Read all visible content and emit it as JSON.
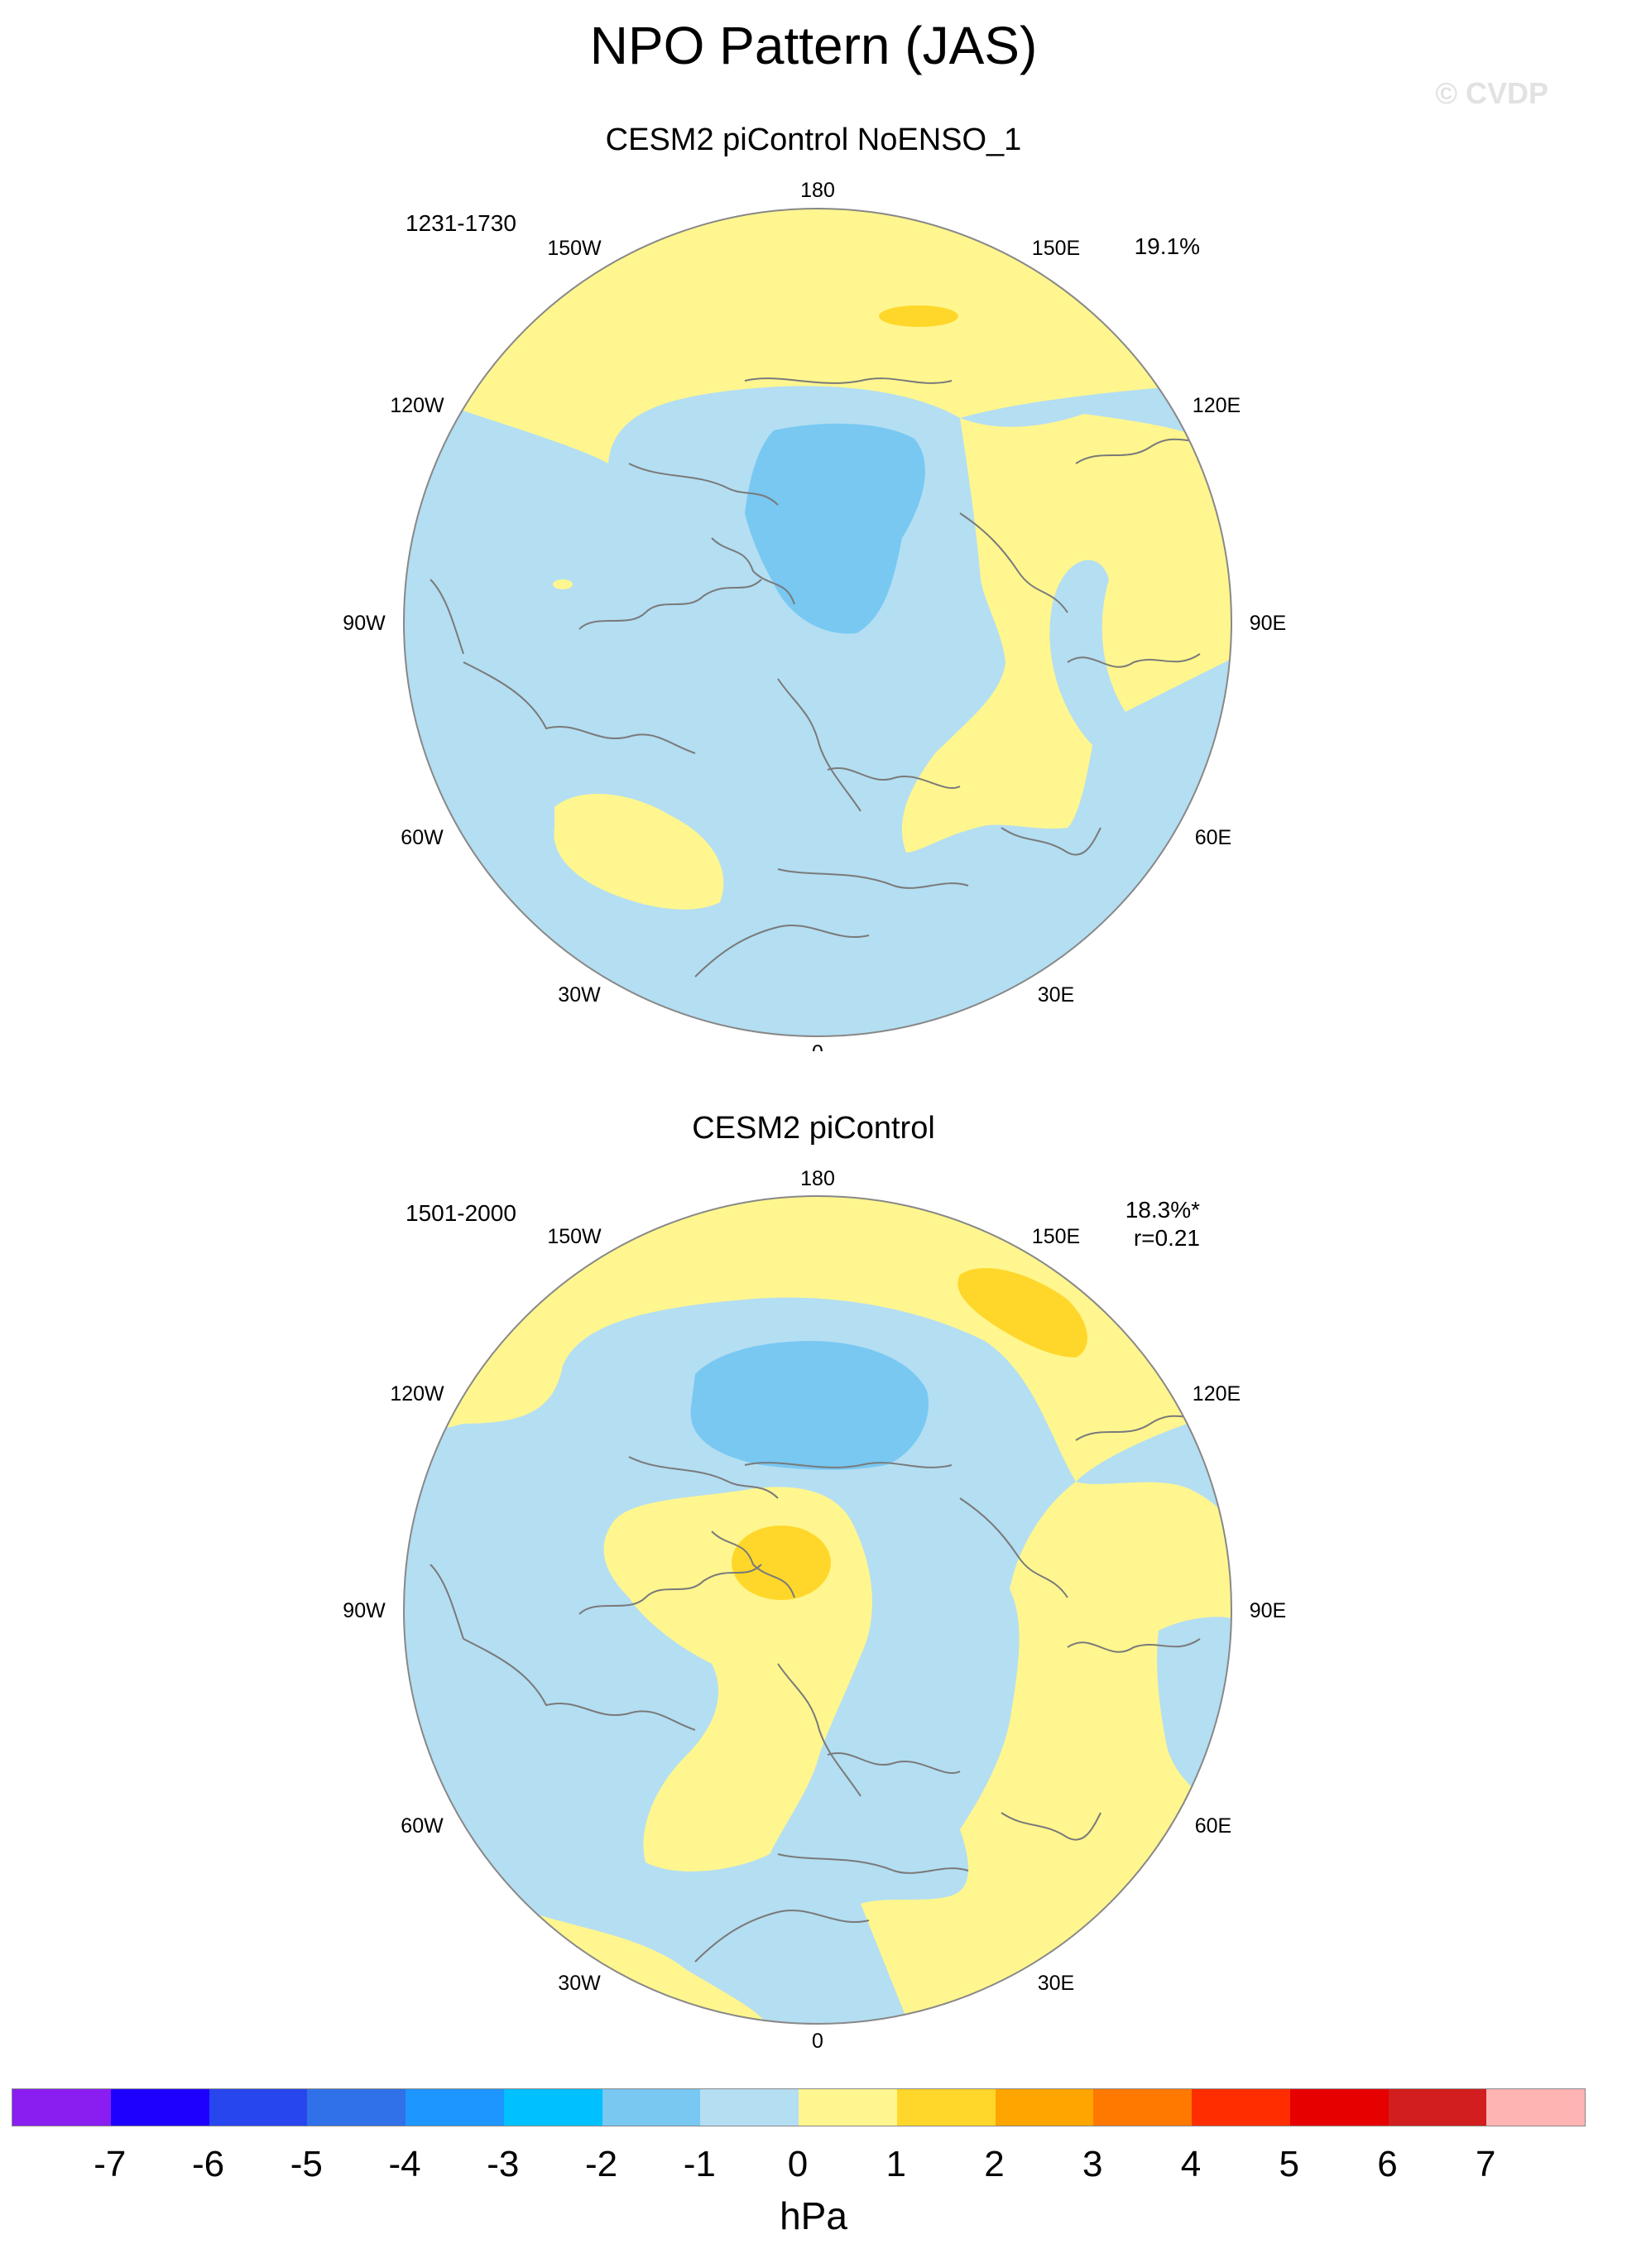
{
  "title": "NPO Pattern (JAS)",
  "watermark": "© CVDP",
  "panels": [
    {
      "title": "CESM2 piControl NoENSO_1",
      "date_range": "1231-1730",
      "stat1": "19.1%",
      "stat2": ""
    },
    {
      "title": "CESM2 piControl",
      "date_range": "1501-2000",
      "stat1": "18.3%*",
      "stat2": "r=0.21"
    }
  ],
  "lon_labels": [
    "180",
    "150E",
    "120E",
    "90E",
    "60E",
    "30E",
    "0",
    "30W",
    "60W",
    "90W",
    "120W",
    "150W"
  ],
  "colorbar": {
    "unit": "hPa",
    "labels": [
      "-7",
      "-6",
      "-5",
      "-4",
      "-3",
      "-2",
      "-1",
      "0",
      "1",
      "2",
      "3",
      "4",
      "5",
      "6",
      "7"
    ],
    "colors": [
      "#8a1ef0",
      "#1e00ff",
      "#2846ee",
      "#3070e8",
      "#1e96ff",
      "#00c0ff",
      "#78c8f2",
      "#b4def2",
      "#fff68f",
      "#ffd72a",
      "#ffa500",
      "#ff7800",
      "#ff2d00",
      "#e60000",
      "#d21e1e",
      "#ffb4b4"
    ]
  },
  "colors": {
    "neg1": "#b4def2",
    "neg2": "#78c8f2",
    "pos1": "#fff68f",
    "pos2": "#ffd72a",
    "coast": "#7a7a7a"
  }
}
